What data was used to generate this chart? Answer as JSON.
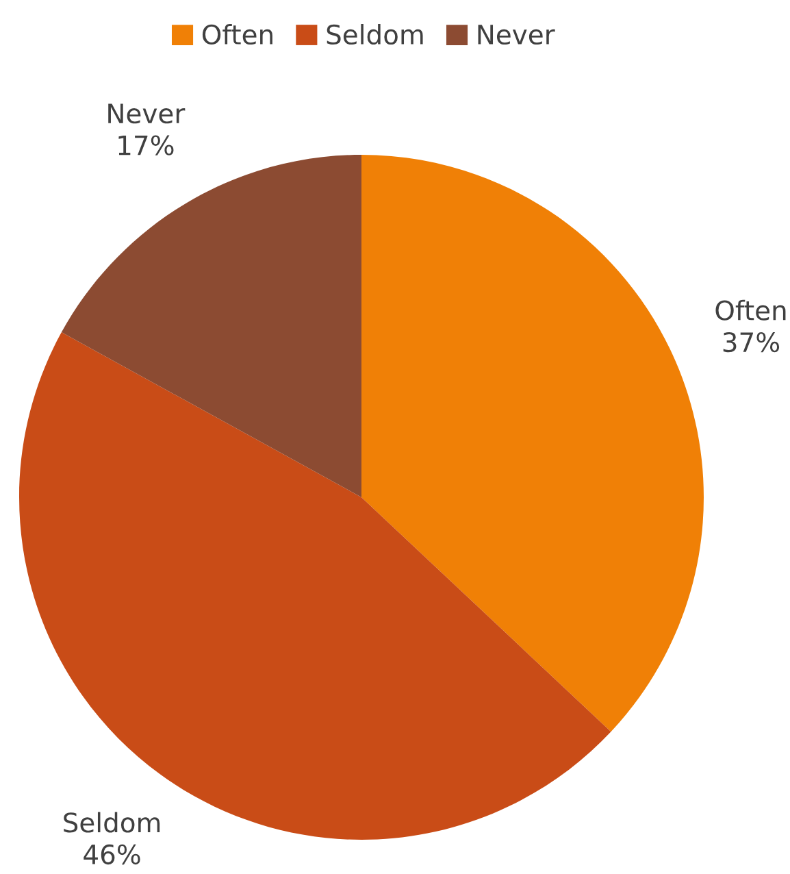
{
  "chart_data": {
    "type": "pie",
    "categories": [
      "Often",
      "Seldom",
      "Never"
    ],
    "values": [
      37,
      46,
      17
    ],
    "value_labels": [
      "37%",
      "46%",
      "17%"
    ],
    "colors": [
      "#f08006",
      "#c94c17",
      "#8c4b32"
    ],
    "legend": "top"
  }
}
